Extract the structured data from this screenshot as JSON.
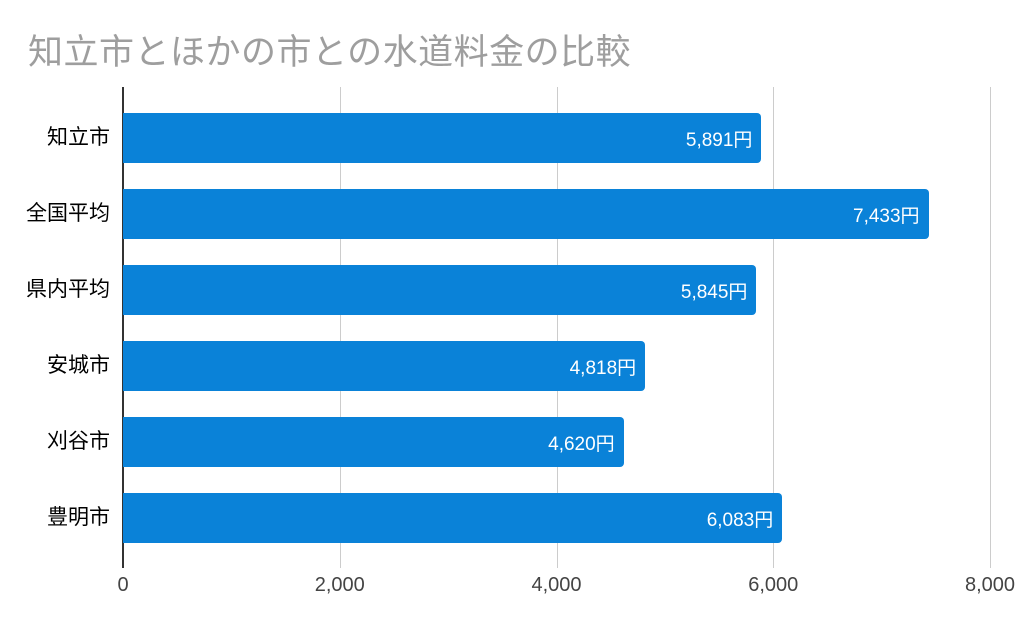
{
  "chart_data": {
    "type": "bar",
    "orientation": "horizontal",
    "title": "知立市とほかの市との水道料金の比較",
    "categories": [
      "知立市",
      "全国平均",
      "県内平均",
      "安城市",
      "刈谷市",
      "豊明市"
    ],
    "values": [
      5891,
      7433,
      5845,
      4818,
      4620,
      6083
    ],
    "value_labels": [
      "5,891円",
      "7,433円",
      "5,845円",
      "4,818円",
      "4,620円",
      "6,083円"
    ],
    "xlim": [
      0,
      8000
    ],
    "x_ticks": [
      0,
      2000,
      4000,
      6000,
      8000
    ],
    "x_tick_labels": [
      "0",
      "2,000",
      "4,000",
      "6,000",
      "8,000"
    ],
    "ylabel": "",
    "xlabel": "",
    "grid": true,
    "legend": "none",
    "colors": {
      "bar": "#0a82d8",
      "title": "#9e9e9e",
      "gridline": "#cccccc",
      "axis_line": "#333333",
      "category_label": "#000000",
      "tick_label": "#444444",
      "value_label": "#ffffff"
    }
  }
}
